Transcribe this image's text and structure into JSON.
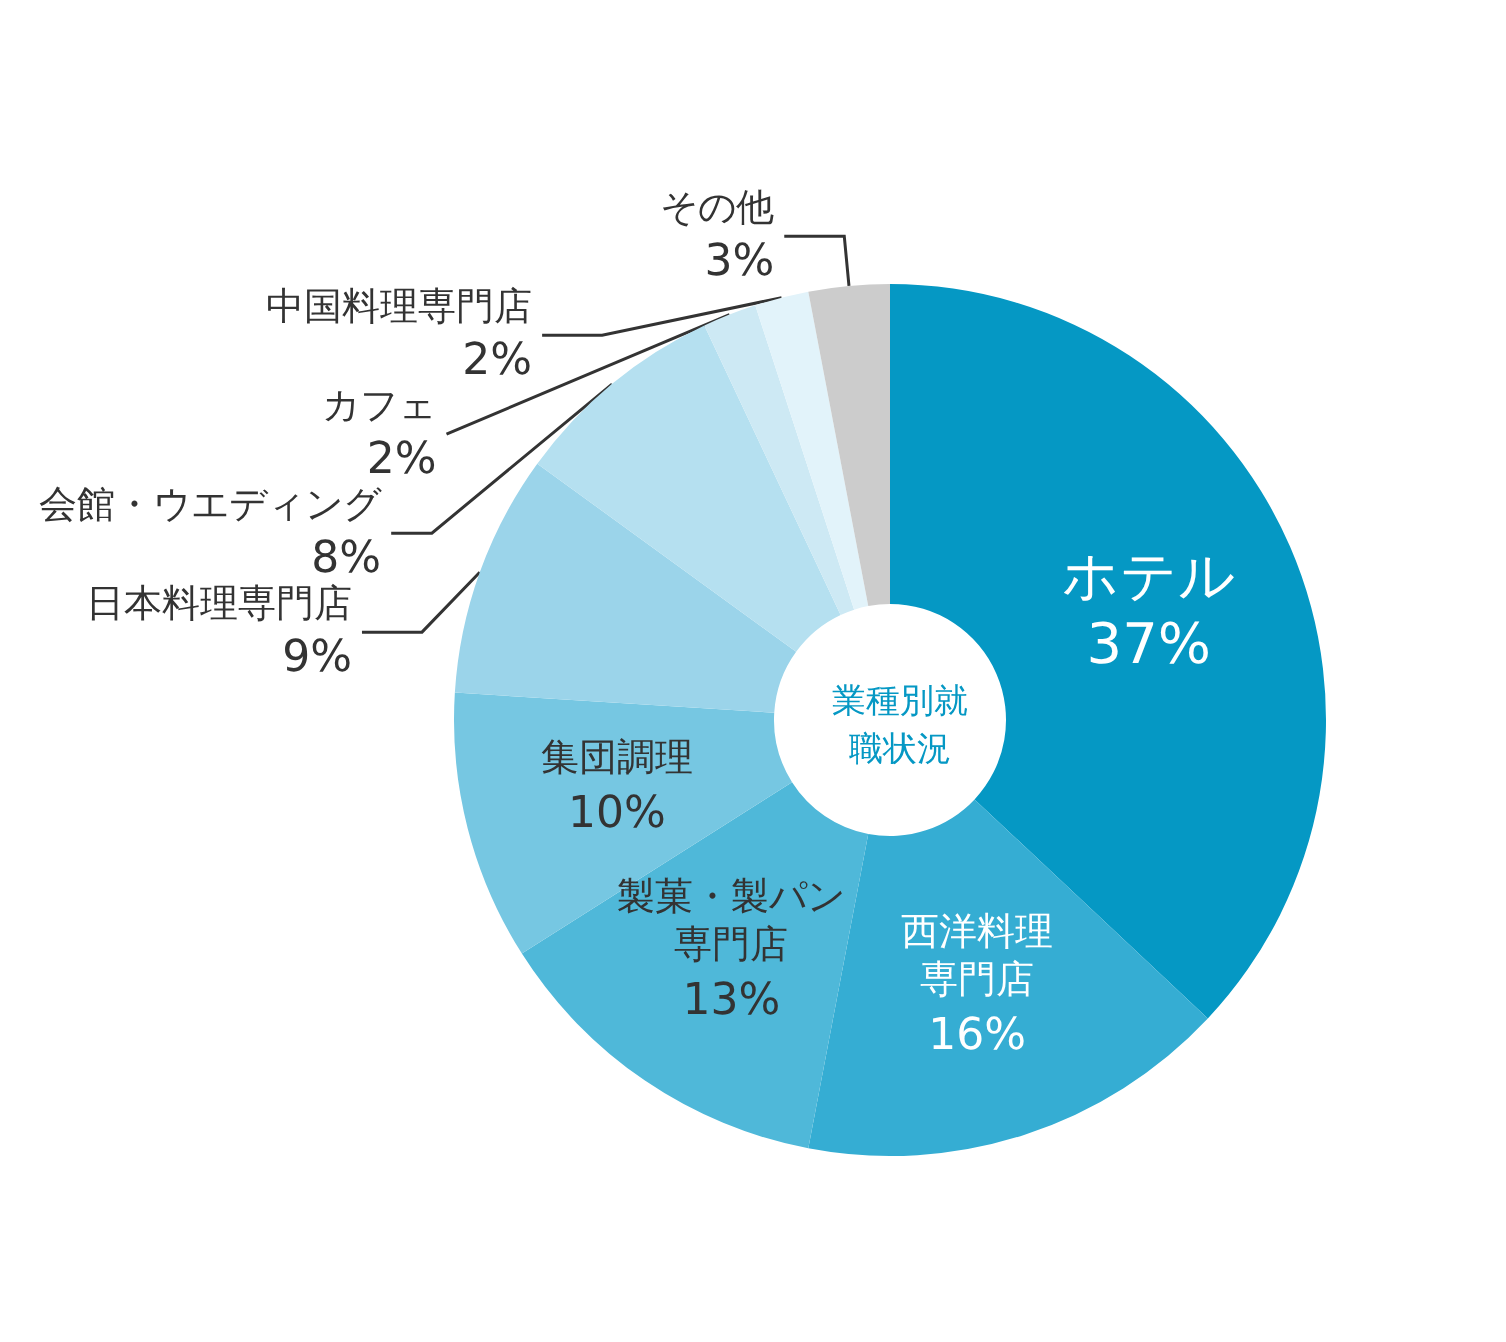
{
  "chart_data": {
    "type": "donut",
    "title": "業種別就職状況",
    "categories": [
      "ホテル",
      "西洋料理専門店",
      "製菓・製パン専門店",
      "集団調理",
      "日本料理専門店",
      "会館・ウエディング",
      "カフェ",
      "中国料理専門店",
      "その他"
    ],
    "values": [
      37,
      16,
      13,
      10,
      9,
      8,
      2,
      2,
      3
    ],
    "colors": [
      "#0598c4",
      "#35add3",
      "#4fb8d9",
      "#76c7e2",
      "#9bd4ea",
      "#b5e0f0",
      "#cde9f4",
      "#e2f3fa",
      "#cccccc"
    ],
    "value_labels": [
      "37%",
      "16%",
      "13%",
      "10%",
      "9%",
      "8%",
      "2%",
      "2%",
      "3%"
    ],
    "legend": false
  }
}
